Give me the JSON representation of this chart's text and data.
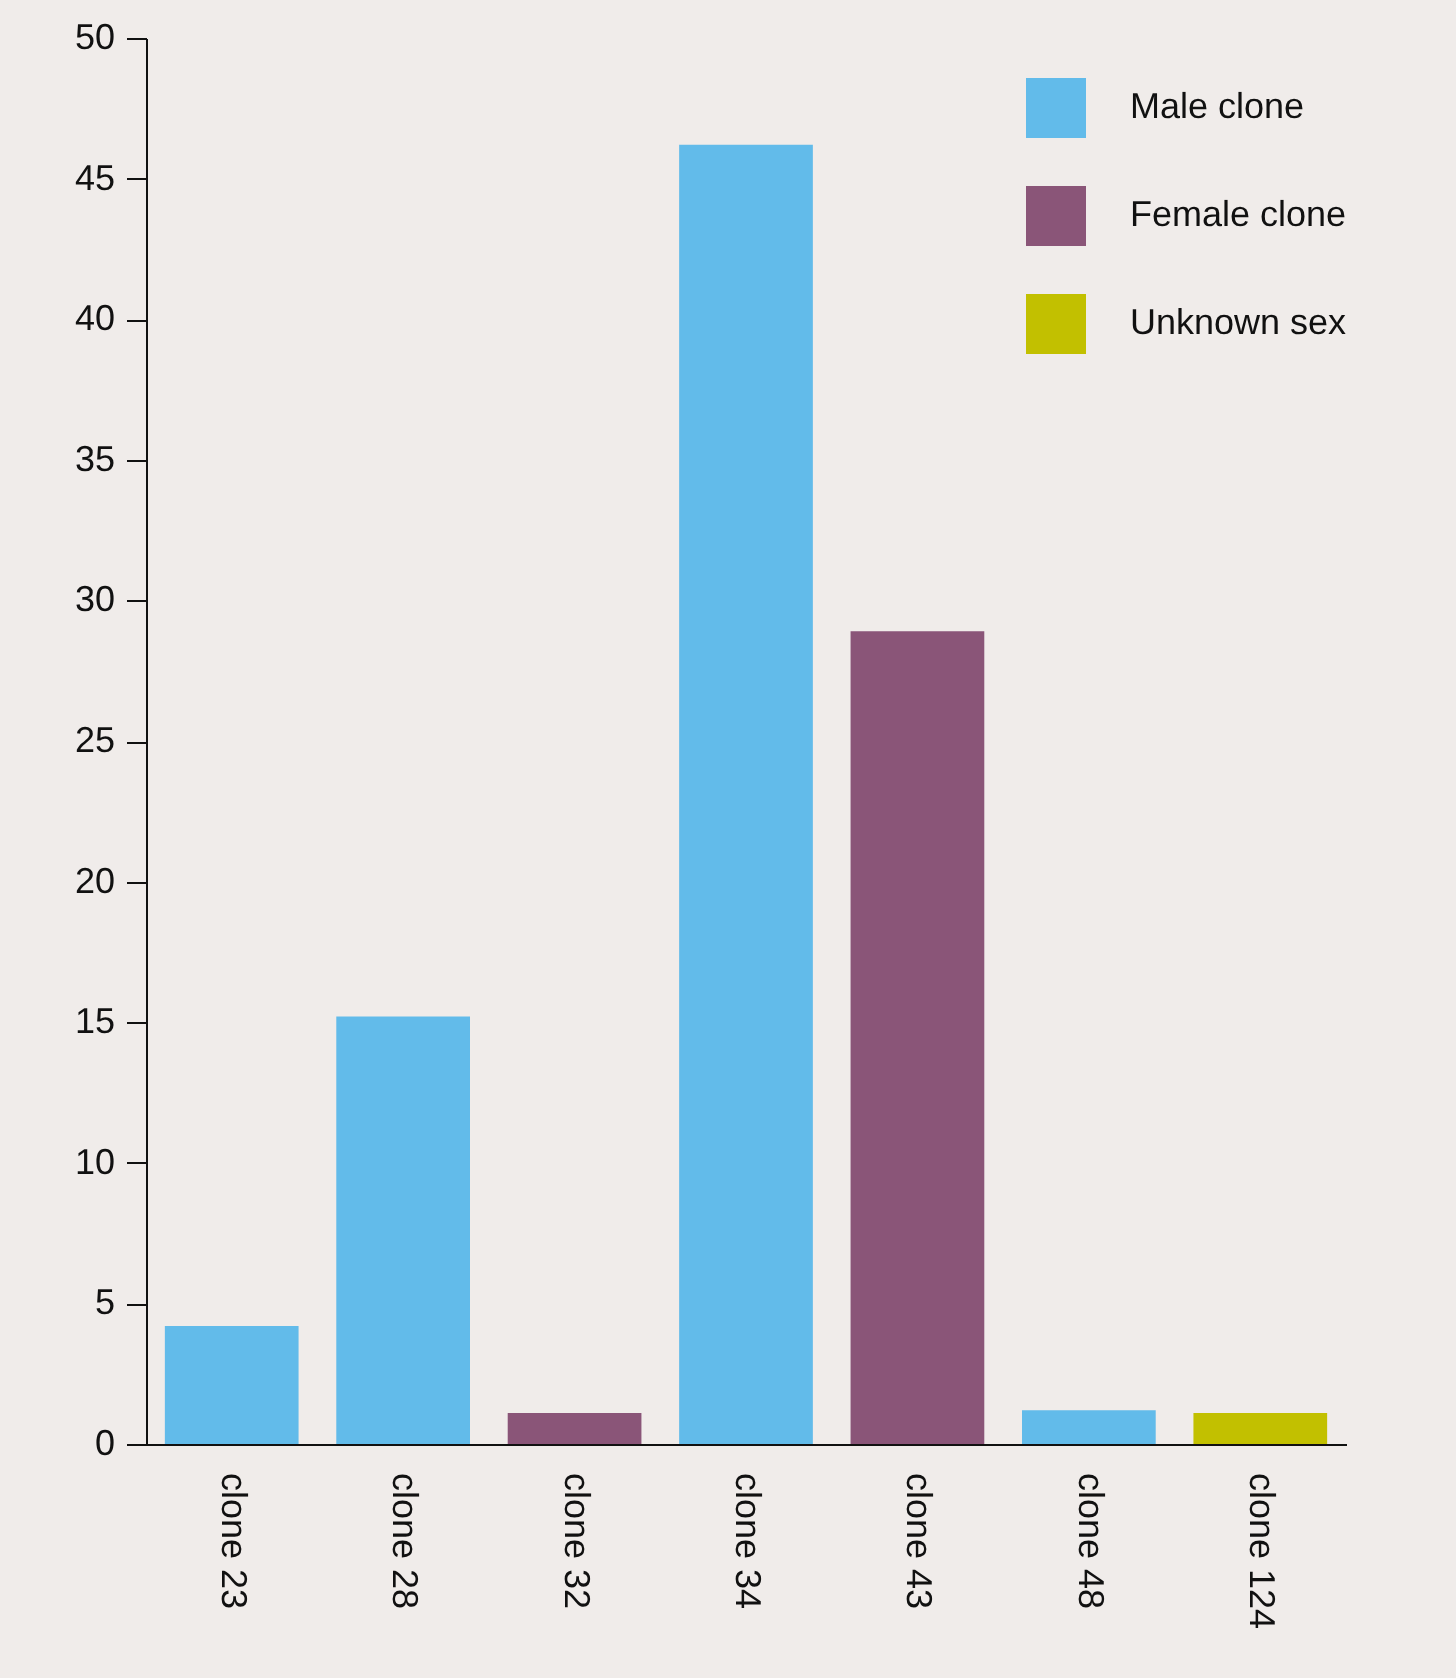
{
  "chart_data": {
    "type": "bar",
    "categories": [
      "clone 23",
      "clone 28",
      "clone 32",
      "clone 34",
      "clone 43",
      "clone 48",
      "clone 124"
    ],
    "series": [
      {
        "name": "Male clone",
        "color": "#62bbea",
        "values": [
          4.2,
          15.2,
          null,
          46.2,
          null,
          1.2,
          null
        ]
      },
      {
        "name": "Female clone",
        "color": "#8a5578",
        "values": [
          null,
          null,
          1.1,
          null,
          28.9,
          null,
          null
        ]
      },
      {
        "name": "Unknown sex",
        "color": "#c2c000",
        "values": [
          null,
          null,
          null,
          null,
          null,
          null,
          1.1
        ]
      }
    ],
    "ylim": [
      0,
      50
    ],
    "yticks": [
      0,
      5,
      10,
      15,
      20,
      25,
      30,
      35,
      40,
      45,
      50
    ],
    "grid": false,
    "legend": "top right"
  }
}
